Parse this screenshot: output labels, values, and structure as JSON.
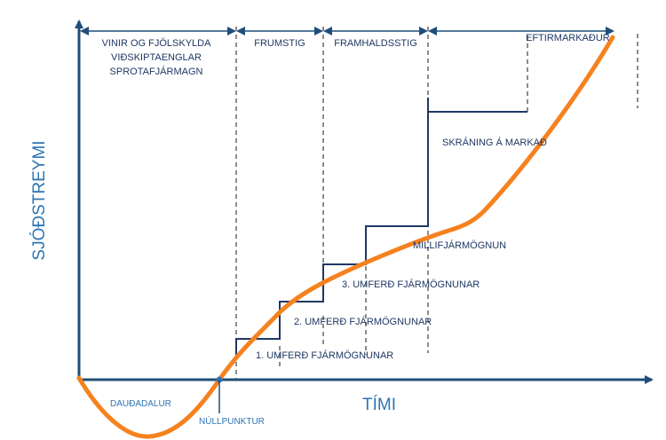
{
  "diagram": {
    "y_axis_label": "SJÓÐSTREYMI",
    "x_axis_label": "TÍMI",
    "stages": {
      "friends": [
        "VINIR OG FJÖLSKYLDA",
        "VIÐSKIPTAENGLAR",
        "SPROTAFJÁRMAGN"
      ],
      "early": "FRUMSTIG",
      "growth": "FRAMHALDSSTIG",
      "after": "EFTIRMARKAÐUR"
    },
    "rounds": {
      "round1": "1. UMFERÐ FJÁRMÖGNUNAR",
      "round2": "2. UMFERÐ FJÁRMÖGNUNAR",
      "round3": "3. UMFERÐ FJÁRMÖGNUNAR",
      "mezzanine": "MILLIFJÁRMÖGNUN",
      "ipo": "SKRÁNING Á MARKAÐ"
    },
    "valley_label": "DAUÐADALUR",
    "breakeven_label": "NÚLLPUNKTUR",
    "colors": {
      "axis": "#1f4e79",
      "curve": "#f5821f",
      "steps": "#1f3864",
      "dividers": "#8c8c8c",
      "axis_title": "#2e74b5"
    }
  }
}
